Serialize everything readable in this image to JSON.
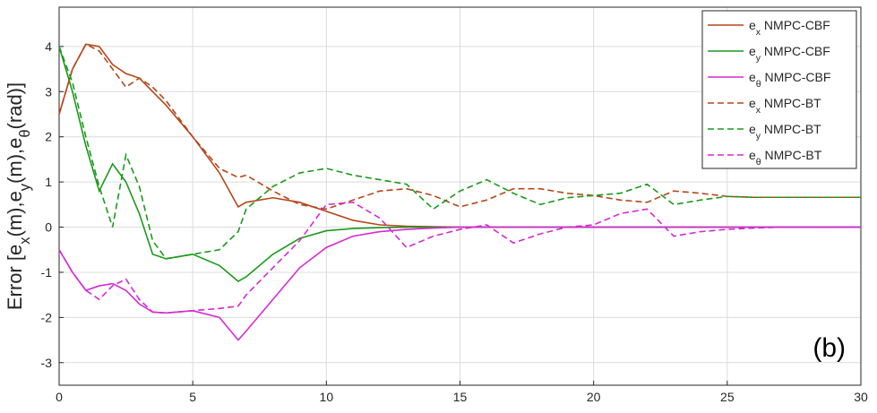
{
  "chart_data": {
    "type": "line",
    "y_label": "Error [ex(m),ey(m),eθ(rad)]",
    "annotation": "(b)",
    "x": [
      0,
      0.5,
      1,
      1.5,
      2,
      2.5,
      3,
      3.5,
      4,
      5,
      6,
      6.7,
      7,
      8,
      9,
      10,
      11,
      12,
      13,
      14,
      15,
      16,
      17,
      18,
      19,
      20,
      21,
      22,
      23,
      24,
      25,
      26,
      27,
      28,
      29,
      30
    ],
    "series": [
      {
        "name": "ex NMPC-CBF",
        "color": "#b5461a",
        "dashed": false,
        "values": [
          2.5,
          3.5,
          4.05,
          4.0,
          3.6,
          3.4,
          3.3,
          3.0,
          2.7,
          2.0,
          1.2,
          0.45,
          0.55,
          0.65,
          0.55,
          0.35,
          0.15,
          0.05,
          0.02,
          0.01,
          0,
          0,
          0,
          0,
          0,
          0,
          0,
          0,
          0,
          0,
          0,
          0,
          0,
          0,
          0,
          0
        ]
      },
      {
        "name": "ey NMPC-CBF",
        "color": "#1a9a1a",
        "dashed": false,
        "values": [
          4.0,
          3.0,
          1.8,
          0.8,
          1.4,
          1.0,
          0.3,
          -0.6,
          -0.7,
          -0.6,
          -0.85,
          -1.2,
          -1.1,
          -0.6,
          -0.25,
          -0.08,
          -0.03,
          -0.01,
          0,
          0,
          0,
          0,
          0,
          0,
          0,
          0,
          0,
          0,
          0,
          0,
          0,
          0,
          0,
          0,
          0,
          0
        ]
      },
      {
        "name": "eθ NMPC-CBF",
        "color": "#d42ad4",
        "dashed": false,
        "values": [
          -0.5,
          -1.0,
          -1.4,
          -1.3,
          -1.25,
          -1.4,
          -1.7,
          -1.88,
          -1.9,
          -1.85,
          -2.0,
          -2.5,
          -2.3,
          -1.6,
          -0.9,
          -0.45,
          -0.2,
          -0.1,
          -0.05,
          -0.02,
          0,
          0,
          0,
          0,
          0,
          0,
          0,
          0,
          0,
          0,
          0,
          0,
          0,
          0,
          0,
          0
        ]
      },
      {
        "name": "ex NMPC-BT",
        "color": "#b5461a",
        "dashed": true,
        "values": [
          2.5,
          3.5,
          4.05,
          3.9,
          3.5,
          3.1,
          3.3,
          3.1,
          2.8,
          2.0,
          1.3,
          1.1,
          1.15,
          0.8,
          0.5,
          0.4,
          0.6,
          0.8,
          0.85,
          0.7,
          0.45,
          0.6,
          0.85,
          0.85,
          0.75,
          0.7,
          0.6,
          0.55,
          0.8,
          0.75,
          0.68,
          0.66,
          0.66,
          0.66,
          0.66,
          0.66
        ]
      },
      {
        "name": "ey NMPC-BT",
        "color": "#1a9a1a",
        "dashed": true,
        "values": [
          4.0,
          3.2,
          2.0,
          0.9,
          0.0,
          1.6,
          0.9,
          -0.3,
          -0.7,
          -0.6,
          -0.5,
          -0.1,
          0.4,
          0.9,
          1.2,
          1.3,
          1.15,
          1.05,
          0.95,
          0.4,
          0.8,
          1.05,
          0.75,
          0.5,
          0.65,
          0.7,
          0.75,
          0.95,
          0.5,
          0.6,
          0.68,
          0.66,
          0.66,
          0.66,
          0.66,
          0.66
        ]
      },
      {
        "name": "eθ NMPC-BT",
        "color": "#d42ad4",
        "dashed": true,
        "values": [
          -0.5,
          -1.0,
          -1.4,
          -1.6,
          -1.3,
          -1.15,
          -1.6,
          -1.88,
          -1.9,
          -1.85,
          -1.8,
          -1.75,
          -1.5,
          -0.9,
          -0.3,
          0.5,
          0.55,
          0.2,
          -0.45,
          -0.2,
          -0.05,
          0.05,
          -0.35,
          -0.15,
          0,
          0.05,
          0.3,
          0.4,
          -0.2,
          -0.1,
          -0.05,
          -0.02,
          0,
          0,
          0,
          0
        ]
      }
    ],
    "xlim": [
      0,
      30
    ],
    "xticks": [
      0,
      5,
      10,
      15,
      20,
      25,
      30
    ],
    "ylim": [
      -3.5,
      4.87
    ],
    "yticks": [
      -3,
      -2,
      -1,
      0,
      1,
      2,
      3,
      4
    ],
    "grid": true,
    "legend": "top-right"
  }
}
